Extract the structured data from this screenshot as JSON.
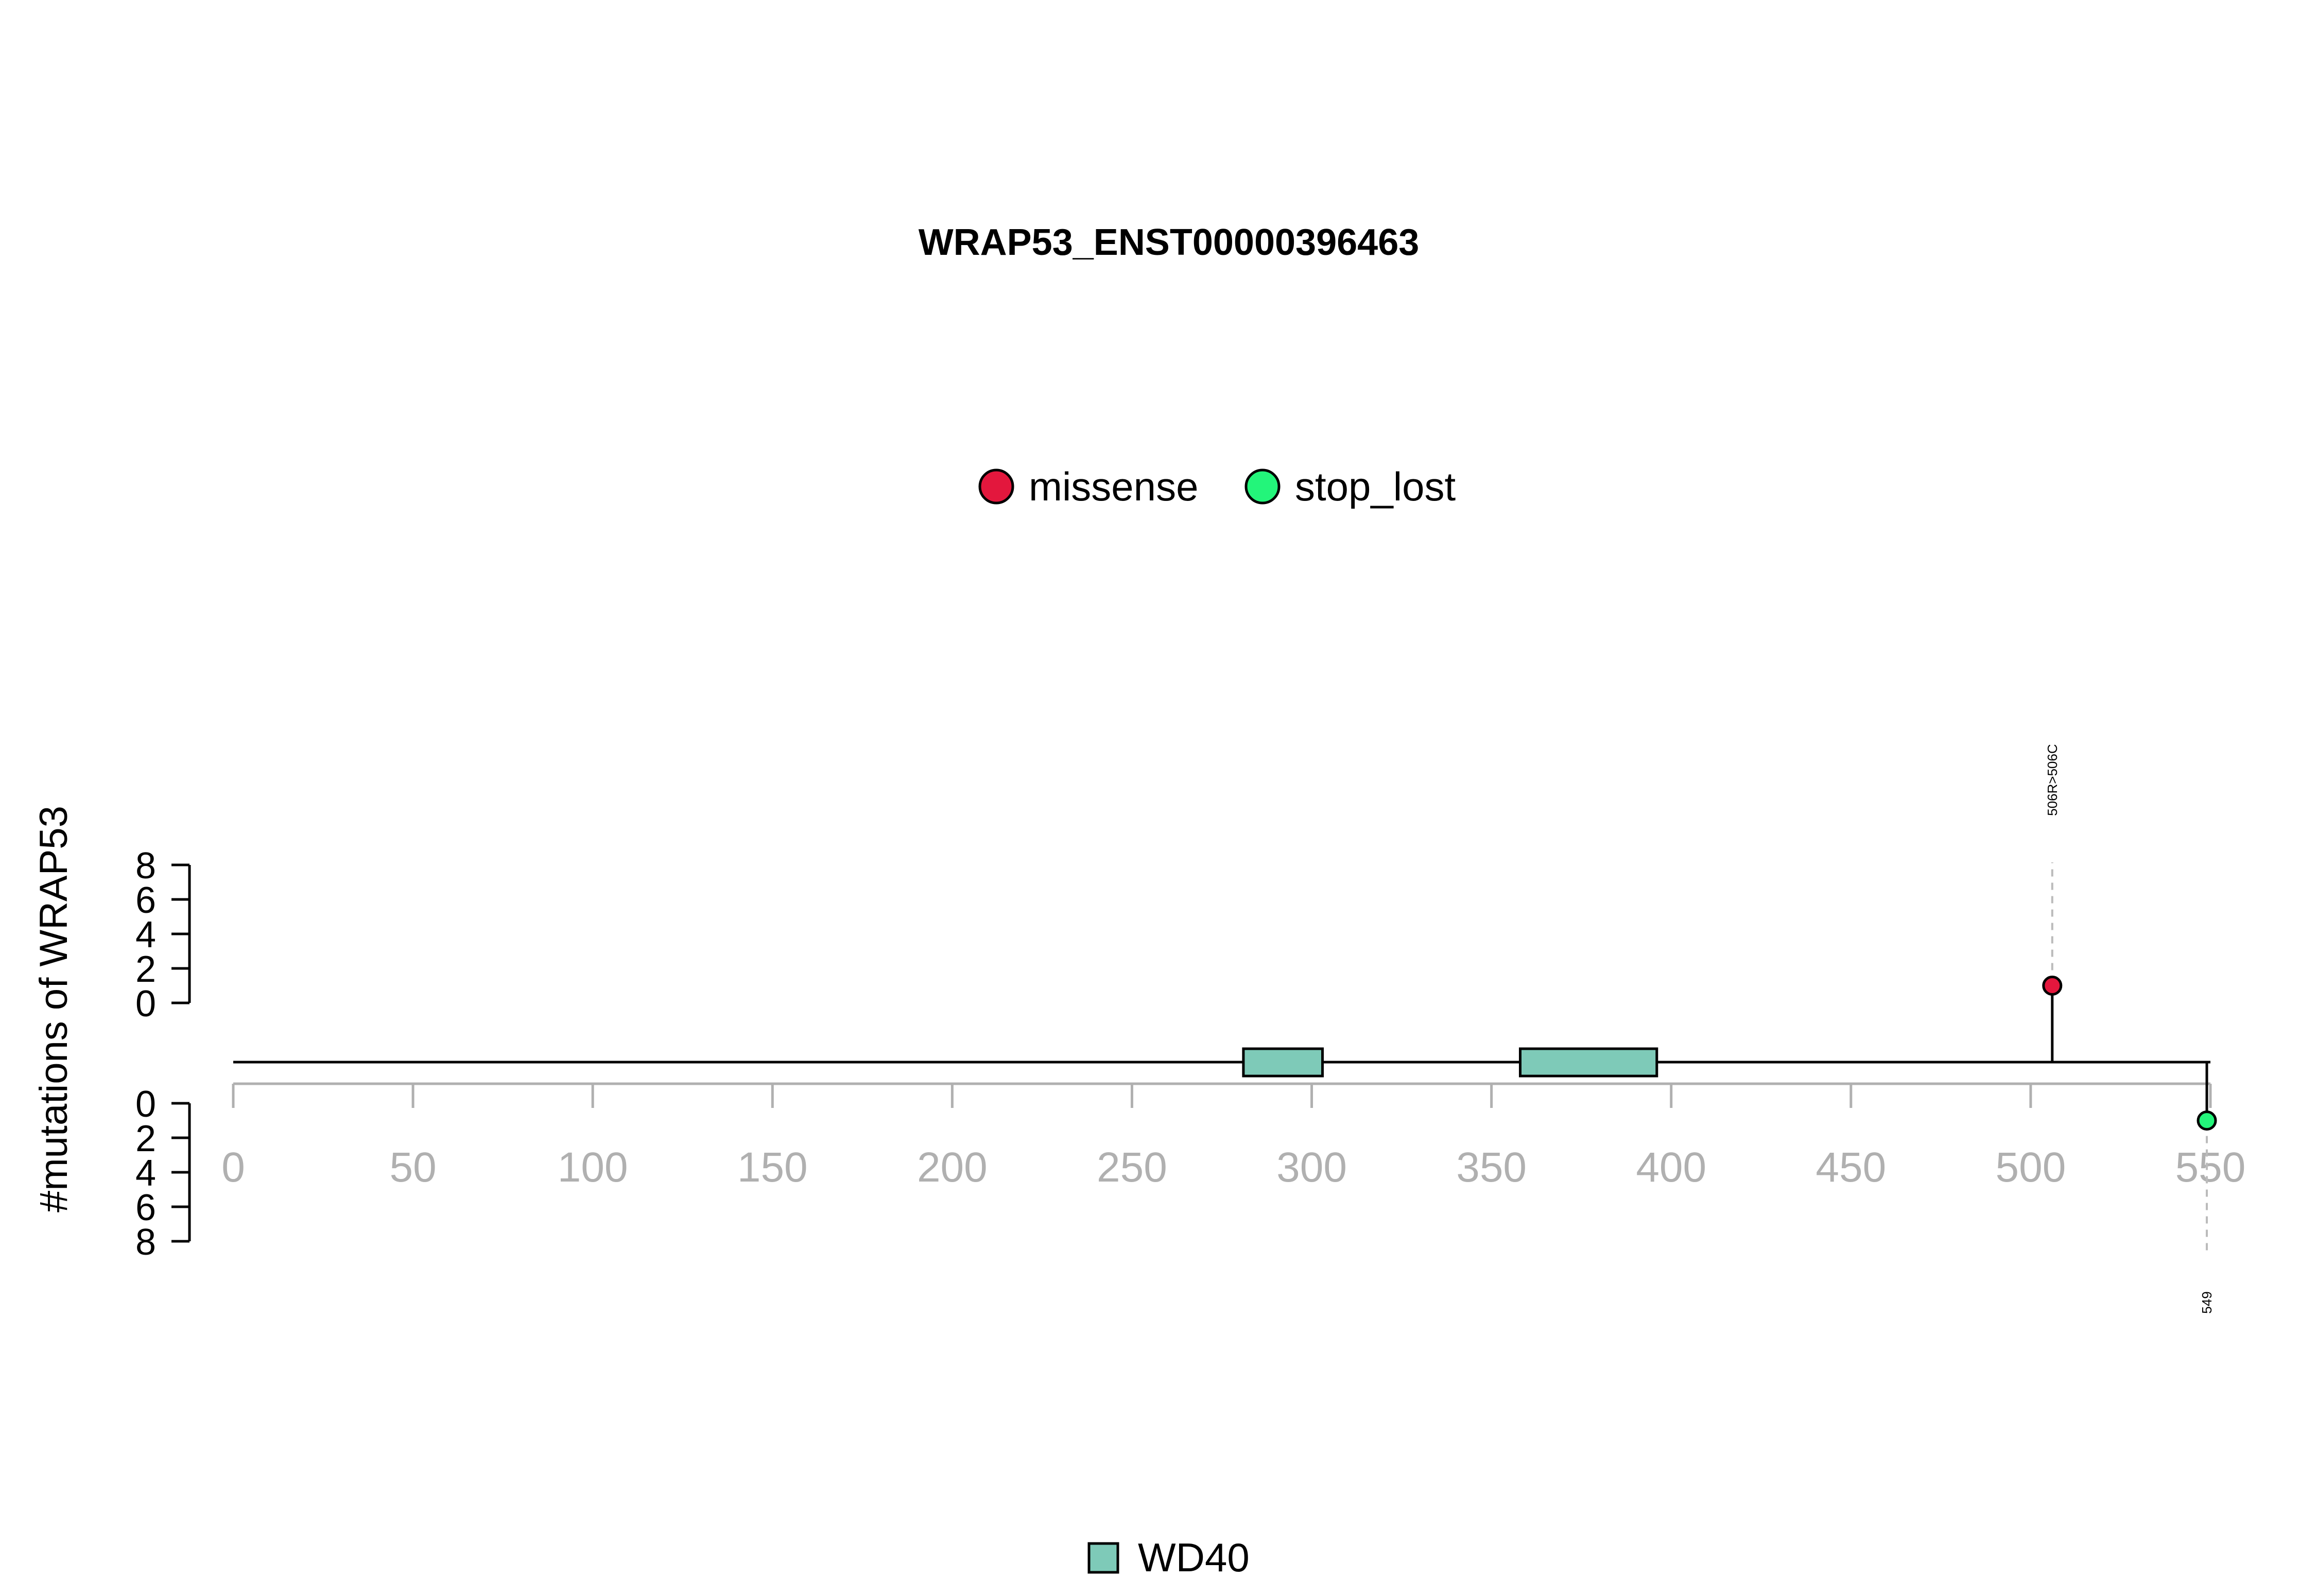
{
  "chart_data": {
    "type": "lollipop",
    "title": "WRAP53_ENST00000396463",
    "ylabel": "#mutations of WRAP53",
    "protein_length": 549,
    "xlim": [
      0,
      550
    ],
    "x_ticks": [
      "0",
      "50",
      "100",
      "150",
      "200",
      "250",
      "300",
      "350",
      "400",
      "450",
      "500",
      "550"
    ],
    "y_ticks_top": [
      "8",
      "6",
      "4",
      "2",
      "0"
    ],
    "y_ticks_bottom": [
      "0",
      "2",
      "4",
      "6",
      "8"
    ],
    "ylim": [
      0,
      8
    ],
    "legend_mutations": [
      {
        "label": "missense",
        "color": "#e3173d"
      },
      {
        "label": "stop_lost",
        "color": "#23f57a"
      }
    ],
    "legend_domains": [
      {
        "label": "WD40",
        "color": "#7ecab8"
      }
    ],
    "domains": [
      {
        "name": "WD40",
        "start": 281,
        "end": 303
      },
      {
        "name": "WD40",
        "start": 358,
        "end": 396
      }
    ],
    "mutations": [
      {
        "position": 506,
        "count": 1,
        "type": "missense",
        "side": "top",
        "label": "506R>506C"
      },
      {
        "position": 549,
        "count": 1,
        "type": "stop_lost",
        "side": "bottom",
        "label": "549"
      }
    ],
    "colors": {
      "missense": "#e3173d",
      "stop_lost": "#23f57a",
      "domain": "#7ecab8",
      "axis_x": "#b0b0b0",
      "axis_y": "#000000"
    }
  }
}
